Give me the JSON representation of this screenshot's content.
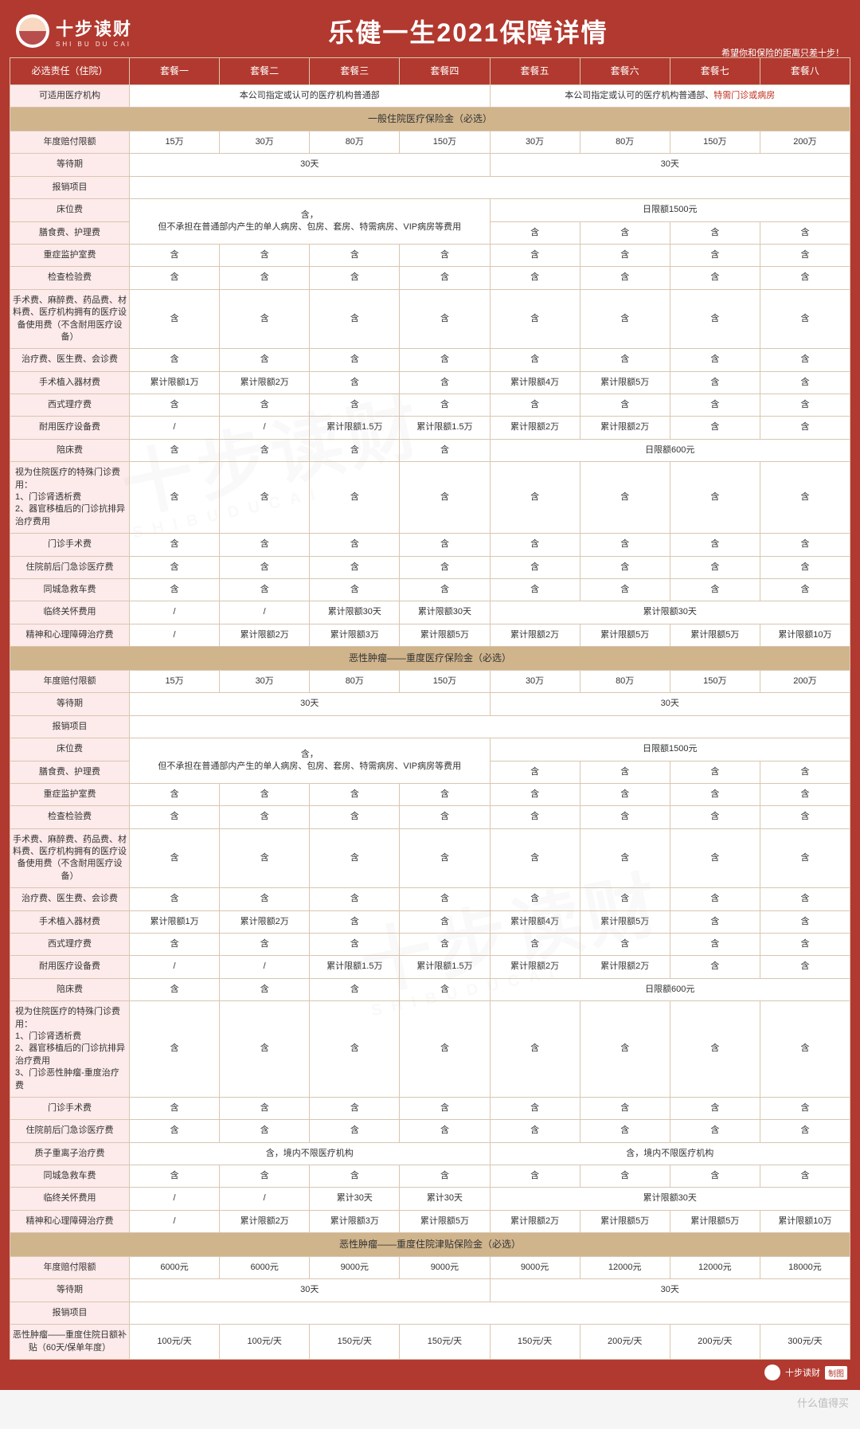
{
  "brand": {
    "name": "十步读财",
    "pinyin": "SHI BU DU CAI"
  },
  "title": "乐健一生2021保障详情",
  "slogan": "希望你和保险的距离只差十步！",
  "footer": {
    "brand": "十步读财",
    "tag": "制图"
  },
  "bottom_mark": "什么值得买",
  "headCol": "必选责任（住院）",
  "packages": [
    "套餐一",
    "套餐二",
    "套餐三",
    "套餐四",
    "套餐五",
    "套餐六",
    "套餐七",
    "套餐八"
  ],
  "rows": [
    {
      "t": "label",
      "text": "可适用医疗机构",
      "cells": [
        {
          "span": 4,
          "text": "本公司指定或认可的医疗机构普通部"
        },
        {
          "span": 4,
          "html": "本公司指定或认可的医疗机构普通部、<span class='note-red'>特需门诊或病房</span>"
        }
      ]
    },
    {
      "t": "section",
      "text": "一般住院医疗保险金（必选）"
    },
    {
      "t": "label",
      "text": "年度赔付限额",
      "cells": [
        "15万",
        "30万",
        "80万",
        "150万",
        "30万",
        "80万",
        "150万",
        "200万"
      ]
    },
    {
      "t": "label",
      "text": "等待期",
      "cells": [
        {
          "span": 4,
          "text": "30天"
        },
        {
          "span": 4,
          "text": "30天"
        }
      ]
    },
    {
      "t": "label",
      "text": "报销项目",
      "cells": [
        {
          "span": 8,
          "text": ""
        }
      ]
    },
    {
      "t": "label",
      "text": "床位费",
      "rowspan": 2,
      "cells": [
        {
          "span": 4,
          "rowspan": 2,
          "text": "含，\n但不承担在普通部内产生的单人病房、包房、套房、特需病房、VIP病房等费用"
        },
        {
          "span": 4,
          "text": "日限额1500元"
        }
      ]
    },
    {
      "t": "cont",
      "label": "膳食费、护理费",
      "cells": [
        "含",
        "含",
        "含",
        "含"
      ]
    },
    {
      "t": "label",
      "text": "重症监护室费",
      "cells": [
        "含",
        "含",
        "含",
        "含",
        "含",
        "含",
        "含",
        "含"
      ]
    },
    {
      "t": "label",
      "text": "检查检验费",
      "cells": [
        "含",
        "含",
        "含",
        "含",
        "含",
        "含",
        "含",
        "含"
      ]
    },
    {
      "t": "label",
      "text": "手术费、麻醉费、药品费、材料费、医疗机构拥有的医疗设备使用费（不含耐用医疗设备）",
      "cells": [
        "含",
        "含",
        "含",
        "含",
        "含",
        "含",
        "含",
        "含"
      ]
    },
    {
      "t": "label",
      "text": "治疗费、医生费、会诊费",
      "cells": [
        "含",
        "含",
        "含",
        "含",
        "含",
        "含",
        "含",
        "含"
      ]
    },
    {
      "t": "label",
      "text": "手术植入器材费",
      "cells": [
        "累计限额1万",
        "累计限额2万",
        "含",
        "含",
        "累计限额4万",
        "累计限额5万",
        "含",
        "含"
      ]
    },
    {
      "t": "label",
      "text": "西式理疗费",
      "cells": [
        "含",
        "含",
        "含",
        "含",
        "含",
        "含",
        "含",
        "含"
      ]
    },
    {
      "t": "label",
      "text": "耐用医疗设备费",
      "cells": [
        "/",
        "/",
        "累计限额1.5万",
        "累计限额1.5万",
        "累计限额2万",
        "累计限额2万",
        "含",
        "含"
      ]
    },
    {
      "t": "label",
      "text": "陪床费",
      "cells": [
        "含",
        "含",
        "含",
        "含",
        {
          "span": 4,
          "text": "日限额600元"
        }
      ]
    },
    {
      "t": "label",
      "text": "视为住院医疗的特殊门诊费用：\n1、门诊肾透析费\n2、器官移植后的门诊抗排异治疗费用",
      "align": "left",
      "cells": [
        "含",
        "含",
        "含",
        "含",
        "含",
        "含",
        "含",
        "含"
      ]
    },
    {
      "t": "label",
      "text": "门诊手术费",
      "cells": [
        "含",
        "含",
        "含",
        "含",
        "含",
        "含",
        "含",
        "含"
      ]
    },
    {
      "t": "label",
      "text": "住院前后门急诊医疗费",
      "cells": [
        "含",
        "含",
        "含",
        "含",
        "含",
        "含",
        "含",
        "含"
      ]
    },
    {
      "t": "label",
      "text": "同城急救车费",
      "cells": [
        "含",
        "含",
        "含",
        "含",
        "含",
        "含",
        "含",
        "含"
      ]
    },
    {
      "t": "label",
      "text": "临终关怀费用",
      "cells": [
        "/",
        "/",
        "累计限额30天",
        "累计限额30天",
        {
          "span": 4,
          "text": "累计限额30天"
        }
      ]
    },
    {
      "t": "label",
      "text": "精神和心理障碍治疗费",
      "cells": [
        "/",
        "累计限额2万",
        "累计限额3万",
        "累计限额5万",
        "累计限额2万",
        "累计限额5万",
        "累计限额5万",
        "累计限额10万"
      ]
    },
    {
      "t": "section",
      "text": "恶性肿瘤——重度医疗保险金（必选）"
    },
    {
      "t": "label",
      "text": "年度赔付限额",
      "cells": [
        "15万",
        "30万",
        "80万",
        "150万",
        "30万",
        "80万",
        "150万",
        "200万"
      ]
    },
    {
      "t": "label",
      "text": "等待期",
      "cells": [
        {
          "span": 4,
          "text": "30天"
        },
        {
          "span": 4,
          "text": "30天"
        }
      ]
    },
    {
      "t": "label",
      "text": "报销项目",
      "cells": [
        {
          "span": 8,
          "text": ""
        }
      ]
    },
    {
      "t": "label",
      "text": "床位费",
      "rowspan": 2,
      "cells": [
        {
          "span": 4,
          "rowspan": 2,
          "text": "含，\n但不承担在普通部内产生的单人病房、包房、套房、特需病房、VIP病房等费用"
        },
        {
          "span": 4,
          "text": "日限额1500元"
        }
      ]
    },
    {
      "t": "cont",
      "label": "膳食费、护理费",
      "cells": [
        "含",
        "含",
        "含",
        "含"
      ]
    },
    {
      "t": "label",
      "text": "重症监护室费",
      "cells": [
        "含",
        "含",
        "含",
        "含",
        "含",
        "含",
        "含",
        "含"
      ]
    },
    {
      "t": "label",
      "text": "检查检验费",
      "cells": [
        "含",
        "含",
        "含",
        "含",
        "含",
        "含",
        "含",
        "含"
      ]
    },
    {
      "t": "label",
      "text": "手术费、麻醉费、药品费、材料费、医疗机构拥有的医疗设备使用费（不含耐用医疗设备）",
      "cells": [
        "含",
        "含",
        "含",
        "含",
        "含",
        "含",
        "含",
        "含"
      ]
    },
    {
      "t": "label",
      "text": "治疗费、医生费、会诊费",
      "cells": [
        "含",
        "含",
        "含",
        "含",
        "含",
        "含",
        "含",
        "含"
      ]
    },
    {
      "t": "label",
      "text": "手术植入器材费",
      "cells": [
        "累计限额1万",
        "累计限额2万",
        "含",
        "含",
        "累计限额4万",
        "累计限额5万",
        "含",
        "含"
      ]
    },
    {
      "t": "label",
      "text": "西式理疗费",
      "cells": [
        "含",
        "含",
        "含",
        "含",
        "含",
        "含",
        "含",
        "含"
      ]
    },
    {
      "t": "label",
      "text": "耐用医疗设备费",
      "cells": [
        "/",
        "/",
        "累计限额1.5万",
        "累计限额1.5万",
        "累计限额2万",
        "累计限额2万",
        "含",
        "含"
      ]
    },
    {
      "t": "label",
      "text": "陪床费",
      "cells": [
        "含",
        "含",
        "含",
        "含",
        {
          "span": 4,
          "text": "日限额600元"
        }
      ]
    },
    {
      "t": "label",
      "text": "视为住院医疗的特殊门诊费用：\n1、门诊肾透析费\n2、器官移植后的门诊抗排异治疗费用\n3、门诊恶性肿瘤-重度治疗费",
      "align": "left",
      "cells": [
        "含",
        "含",
        "含",
        "含",
        "含",
        "含",
        "含",
        "含"
      ]
    },
    {
      "t": "label",
      "text": "门诊手术费",
      "cells": [
        "含",
        "含",
        "含",
        "含",
        "含",
        "含",
        "含",
        "含"
      ]
    },
    {
      "t": "label",
      "text": "住院前后门急诊医疗费",
      "cells": [
        "含",
        "含",
        "含",
        "含",
        "含",
        "含",
        "含",
        "含"
      ]
    },
    {
      "t": "label",
      "text": "质子重离子治疗费",
      "cells": [
        {
          "span": 4,
          "text": "含，境内不限医疗机构"
        },
        {
          "span": 4,
          "text": "含，境内不限医疗机构"
        }
      ]
    },
    {
      "t": "label",
      "text": "同城急救车费",
      "cells": [
        "含",
        "含",
        "含",
        "含",
        "含",
        "含",
        "含",
        "含"
      ]
    },
    {
      "t": "label",
      "text": "临终关怀费用",
      "cells": [
        "/",
        "/",
        "累计30天",
        "累计30天",
        {
          "span": 4,
          "text": "累计限额30天"
        }
      ]
    },
    {
      "t": "label",
      "text": "精神和心理障碍治疗费",
      "cells": [
        "/",
        "累计限额2万",
        "累计限额3万",
        "累计限额5万",
        "累计限额2万",
        "累计限额5万",
        "累计限额5万",
        "累计限额10万"
      ]
    },
    {
      "t": "section",
      "text": "恶性肿瘤——重度住院津贴保险金（必选）"
    },
    {
      "t": "label",
      "text": "年度赔付限额",
      "cells": [
        "6000元",
        "6000元",
        "9000元",
        "9000元",
        "9000元",
        "12000元",
        "12000元",
        "18000元"
      ]
    },
    {
      "t": "label",
      "text": "等待期",
      "cells": [
        {
          "span": 4,
          "text": "30天"
        },
        {
          "span": 4,
          "text": "30天"
        }
      ]
    },
    {
      "t": "label",
      "text": "报销项目",
      "cells": [
        {
          "span": 8,
          "text": ""
        }
      ]
    },
    {
      "t": "label",
      "text": "恶性肿瘤——重度住院日额补贴（60天/保单年度）",
      "cells": [
        "100元/天",
        "100元/天",
        "150元/天",
        "150元/天",
        "150元/天",
        "200元/天",
        "200元/天",
        "300元/天"
      ]
    }
  ]
}
